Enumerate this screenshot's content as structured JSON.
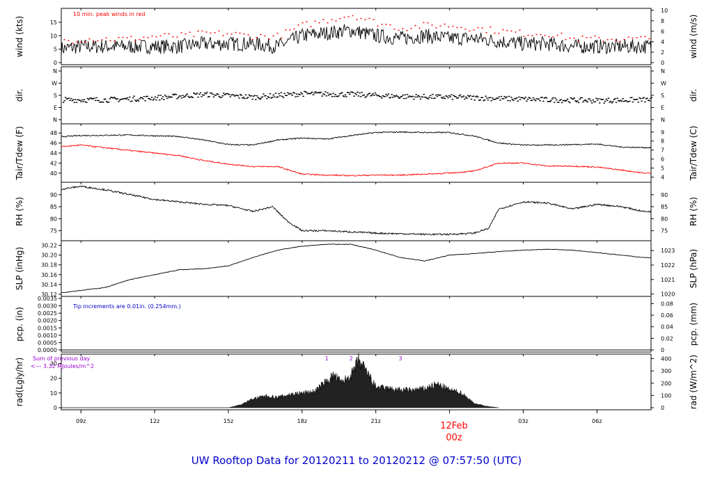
{
  "title": "UW Rooftop Data for 20120211  to  20120212 @ 07:57:50  (UTC)",
  "date_label": "12Feb",
  "date_sublabel": "00z",
  "colors": {
    "title": "#0000cc",
    "red": "#ff0000",
    "blue": "#0000cc",
    "purple": "#9900cc",
    "line": "#000000"
  },
  "chart_data": [
    {
      "type": "line",
      "ylabel": "wind (kts)",
      "ylabel_right": "wind (m/s)",
      "ylim": [
        0,
        19.4
      ],
      "yticks": [
        0,
        5,
        10,
        15
      ],
      "yticks_right": [
        0,
        2,
        4,
        6,
        8,
        10
      ],
      "right_scale": 1.944,
      "annotation": "10 min. peak winds in red",
      "x": [
        8,
        9,
        10,
        11,
        12,
        13,
        14,
        15,
        16,
        17,
        18,
        19,
        20,
        21,
        22,
        23,
        24,
        25,
        26,
        27,
        28,
        29,
        31.9
      ],
      "series": [
        {
          "name": "wind",
          "values": [
            5,
            6,
            6,
            6,
            6,
            6,
            7,
            7,
            7,
            6,
            10,
            11,
            12,
            10,
            9,
            10,
            9,
            9,
            8,
            7,
            7,
            6,
            6
          ]
        },
        {
          "name": "10 min. peak winds",
          "values": [
            8,
            9,
            9,
            9,
            10,
            10,
            11,
            11,
            10,
            10,
            14,
            16,
            18,
            15,
            13,
            14,
            14,
            13,
            12,
            11,
            11,
            9,
            9
          ]
        }
      ]
    },
    {
      "type": "scatter",
      "ylabel": "dir.",
      "ylabel_right": "dir.",
      "ylim": [
        0,
        360
      ],
      "ytick_labels": [
        "N",
        "E",
        "S",
        "W",
        "N"
      ],
      "ytick_values": [
        0,
        90,
        180,
        270,
        360
      ],
      "x": [
        8,
        10,
        12,
        14,
        16,
        18,
        20,
        22,
        24,
        26,
        28,
        30,
        31.9
      ],
      "values": [
        150,
        150,
        165,
        190,
        170,
        195,
        190,
        175,
        170,
        160,
        150,
        145,
        150
      ]
    },
    {
      "type": "line",
      "ylabel": "Tair/Tdew (F)",
      "ylabel_right": "Tair/Tdew (C)",
      "ylim": [
        39,
        49
      ],
      "yticks": [
        40,
        42,
        44,
        46,
        48
      ],
      "yticks_right": [
        4,
        5,
        6,
        7,
        8,
        9
      ],
      "x": [
        8,
        9,
        11,
        13,
        14,
        15,
        16,
        17,
        18,
        19,
        20,
        21,
        22,
        23,
        24,
        25,
        26,
        27,
        28,
        29,
        30,
        31,
        31.9
      ],
      "series": [
        {
          "name": "Tair",
          "values": [
            47.2,
            47.5,
            47.6,
            47.3,
            46.6,
            45.7,
            45.6,
            46.6,
            47,
            46.8,
            47.5,
            48.1,
            48.2,
            48.1,
            48.1,
            47.4,
            46,
            45.6,
            45.6,
            45.7,
            45.8,
            45.2,
            45.1
          ]
        },
        {
          "name": "Tdew",
          "values": [
            45.2,
            45.6,
            44.5,
            43.5,
            42.5,
            41.8,
            41.3,
            41.3,
            39.8,
            39.6,
            39.5,
            39.6,
            39.6,
            39.8,
            40,
            40.4,
            42,
            42,
            41.4,
            41.4,
            41.2,
            40.6,
            40
          ]
        }
      ]
    },
    {
      "type": "line",
      "ylabel": "RH (%)",
      "ylabel_right": "RH (%)",
      "ylim": [
        72,
        94
      ],
      "yticks": [
        75,
        80,
        85,
        90
      ],
      "yticks_right": [
        75,
        80,
        85,
        90
      ],
      "x": [
        8,
        9,
        10,
        12,
        14,
        15,
        16,
        16.8,
        17.4,
        18,
        19,
        20,
        21,
        23,
        24,
        25,
        25.6,
        26,
        27,
        28,
        29,
        30,
        31,
        31.9
      ],
      "series": [
        {
          "name": "RH",
          "values": [
            92,
            93.5,
            92,
            88,
            86,
            85.5,
            83,
            85,
            79,
            75,
            75,
            74.5,
            74,
            73.5,
            73.5,
            74,
            76,
            84,
            87,
            86.5,
            84,
            86,
            85,
            83
          ]
        }
      ]
    },
    {
      "type": "line",
      "ylabel": "SLP (inHg)",
      "ylabel_right": "SLP (hPa)",
      "ylim": [
        30.12,
        30.225
      ],
      "yticks": [
        30.12,
        30.14,
        30.16,
        30.18,
        30.2,
        30.22
      ],
      "yticks_right": [
        1020,
        1021,
        1022,
        1023
      ],
      "x": [
        8,
        9,
        10,
        11,
        12,
        13,
        14,
        15,
        16,
        17,
        18,
        19,
        20,
        21,
        22,
        23,
        24,
        25,
        26,
        27,
        28,
        29,
        30,
        31.9
      ],
      "series": [
        {
          "name": "SLP",
          "values": [
            30.122,
            30.128,
            30.134,
            30.15,
            30.16,
            30.17,
            30.172,
            30.178,
            30.195,
            30.21,
            30.218,
            30.222,
            30.222,
            30.21,
            30.195,
            30.188,
            30.2,
            30.203,
            30.207,
            30.21,
            30.212,
            30.21,
            30.205,
            30.195
          ]
        }
      ]
    },
    {
      "type": "line",
      "ylabel": "pcp. (in)",
      "ylabel_right": "pcp. (mm)",
      "ylim": [
        0,
        0.0035
      ],
      "yticks": [
        0,
        0.0005,
        0.001,
        0.0015,
        0.002,
        0.0025,
        0.003,
        0.0035
      ],
      "yticks_right": [
        0,
        0.02,
        0.04,
        0.06,
        0.08
      ],
      "annotation": "Tip increments are 0.01in. (0.254mm.)",
      "x": [
        8,
        31.9
      ],
      "series": [
        {
          "name": "pcp",
          "values": [
            0,
            0
          ]
        }
      ]
    },
    {
      "type": "area",
      "ylabel": "rad(Lgly/hr)",
      "ylabel_right": "rad (W/m^2)",
      "ylim": [
        0,
        35
      ],
      "yticks": [
        0,
        10,
        20,
        30
      ],
      "yticks_right": [
        0,
        100,
        200,
        300,
        400
      ],
      "annotation_lines": [
        "Sum of previous day",
        "<--- 3.32 MJoules/m^2"
      ],
      "markers": [
        "1",
        "2",
        "3"
      ],
      "x": [
        15,
        15.5,
        16,
        16.5,
        17,
        17.5,
        18,
        18.5,
        19,
        19.3,
        19.6,
        20,
        20.3,
        20.6,
        21,
        21.5,
        22,
        22.5,
        23,
        23.5,
        24,
        24.5,
        25,
        25.5,
        26
      ],
      "series": [
        {
          "name": "rad",
          "values": [
            0,
            2,
            6,
            8,
            7,
            9,
            10,
            11,
            18,
            22,
            17,
            22,
            32,
            25,
            14,
            13,
            12,
            12,
            13,
            16,
            12,
            10,
            3,
            1,
            0
          ]
        }
      ]
    }
  ],
  "x_axis": {
    "tick_labels": [
      "09z",
      "12z",
      "15z",
      "18z",
      "21z",
      "00z",
      "03z",
      "06z"
    ],
    "tick_values": [
      9,
      12,
      15,
      18,
      21,
      24,
      27,
      30
    ],
    "range": [
      8.2,
      32.2
    ]
  },
  "marker_positions": [
    19,
    20,
    22
  ]
}
